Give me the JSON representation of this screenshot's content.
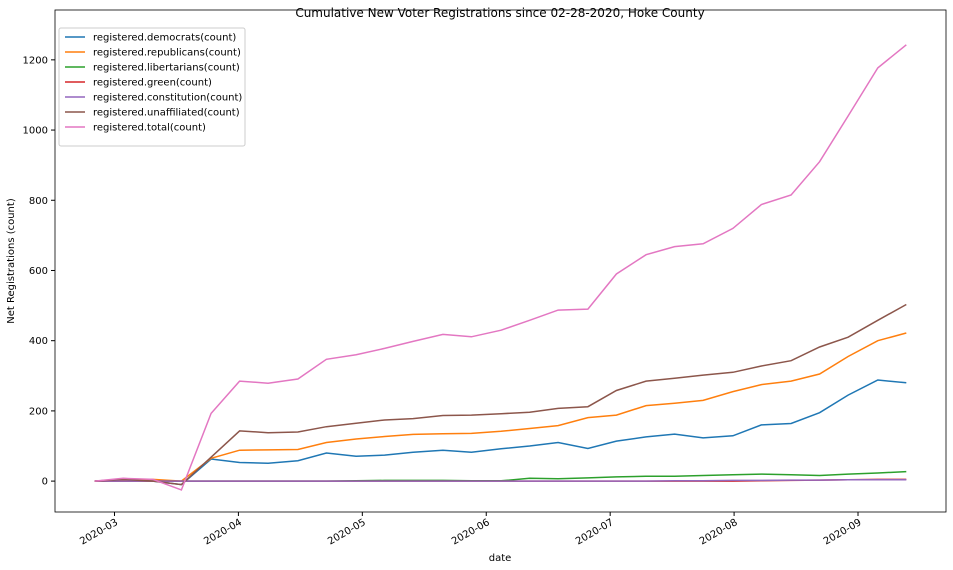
{
  "chart_data": {
    "type": "line",
    "title": "Cumulative New Voter Registrations since 02-28-2020, Hoke County",
    "x_label": "date",
    "y_label": "Net Registrations (count)",
    "x": [
      2.84,
      3.07,
      3.31,
      3.54,
      3.78,
      4.01,
      4.24,
      4.48,
      4.71,
      4.95,
      5.18,
      5.41,
      5.65,
      5.88,
      6.12,
      6.35,
      6.58,
      6.82,
      7.05,
      7.29,
      7.52,
      7.75,
      7.99,
      8.22,
      8.46,
      8.69,
      8.92,
      9.16,
      9.39
    ],
    "series": [
      {
        "name": "registered.democrats(count)",
        "color": "#1f77b4",
        "values": [
          0,
          5,
          0,
          -10,
          63,
          53,
          51,
          58,
          80,
          71,
          74,
          82,
          88,
          82,
          92,
          100,
          110,
          93,
          114,
          126,
          134,
          123,
          129,
          160,
          164,
          195,
          245,
          288,
          280
        ]
      },
      {
        "name": "registered.republicans(count)",
        "color": "#ff7f0e",
        "values": [
          0,
          3,
          5,
          0,
          65,
          88,
          89,
          90,
          110,
          120,
          127,
          133,
          135,
          136,
          142,
          150,
          158,
          181,
          188,
          215,
          222,
          230,
          255,
          275,
          285,
          305,
          355,
          400,
          422
        ]
      },
      {
        "name": "registered.libertarians(count)",
        "color": "#2ca02c",
        "values": [
          0,
          0,
          0,
          0,
          0,
          0,
          0,
          0,
          0,
          1,
          2,
          2,
          2,
          1,
          1,
          8,
          7,
          9,
          12,
          14,
          14,
          16,
          18,
          20,
          18,
          16,
          20,
          23,
          27
        ]
      },
      {
        "name": "registered.green(count)",
        "color": "#d62728",
        "values": [
          0,
          0,
          0,
          0,
          0,
          0,
          0,
          0,
          0,
          0,
          0,
          0,
          0,
          0,
          0,
          0,
          0,
          0,
          0,
          0,
          0,
          0,
          0,
          1,
          2,
          3,
          4,
          5,
          5
        ]
      },
      {
        "name": "registered.constitution(count)",
        "color": "#9467bd",
        "values": [
          0,
          0,
          0,
          0,
          0,
          0,
          0,
          0,
          0,
          0,
          0,
          0,
          0,
          0,
          0,
          0,
          0,
          0,
          0,
          0,
          1,
          1,
          2,
          2,
          3,
          3,
          4,
          4,
          4
        ]
      },
      {
        "name": "registered.unaffiliated(count)",
        "color": "#8c564b",
        "values": [
          0,
          5,
          0,
          -10,
          68,
          143,
          138,
          140,
          155,
          165,
          174,
          178,
          187,
          188,
          192,
          196,
          207,
          212,
          258,
          285,
          293,
          302,
          310,
          328,
          343,
          382,
          410,
          458,
          503
        ]
      },
      {
        "name": "registered.total(count)",
        "color": "#e377c2",
        "values": [
          0,
          8,
          5,
          -25,
          193,
          285,
          279,
          291,
          347,
          360,
          378,
          398,
          418,
          411,
          430,
          458,
          487,
          490,
          590,
          645,
          668,
          676,
          720,
          788,
          815,
          910,
          1040,
          1177,
          1243
        ]
      }
    ],
    "xlim": [
      2.52,
      9.71
    ],
    "xticks": [
      {
        "value": 3,
        "label": "2020-03"
      },
      {
        "value": 4,
        "label": "2020-04"
      },
      {
        "value": 5,
        "label": "2020-05"
      },
      {
        "value": 6,
        "label": "2020-06"
      },
      {
        "value": 7,
        "label": "2020-07"
      },
      {
        "value": 8,
        "label": "2020-08"
      },
      {
        "value": 9,
        "label": "2020-09"
      }
    ],
    "ylim": [
      -88,
      1342
    ],
    "yticks": [
      0,
      200,
      400,
      600,
      800,
      1000,
      1200
    ],
    "legend": "upper left",
    "grid": false
  }
}
